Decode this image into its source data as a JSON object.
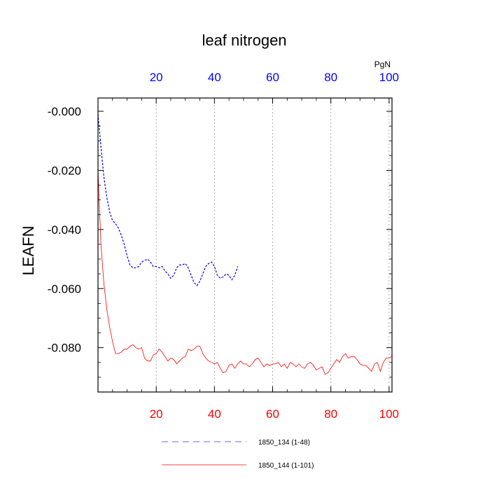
{
  "chart_data": {
    "type": "line",
    "title": "leaf nitrogen",
    "ylabel": "LEAFN",
    "xlabel": "",
    "top_axis_unit": "PgN",
    "xlim": [
      0,
      101
    ],
    "ylim": [
      -0.095,
      0.0045
    ],
    "x_ticks": [
      20,
      40,
      60,
      80,
      100
    ],
    "x_tick_labels": [
      "20",
      "40",
      "60",
      "80",
      "100"
    ],
    "y_ticks": [
      0.0,
      -0.02,
      -0.04,
      -0.06,
      -0.08
    ],
    "y_tick_labels": [
      "-0.000",
      "-0.020",
      "-0.040",
      "-0.060",
      "-0.080"
    ],
    "grid": "vertical dotted at x ticks",
    "colors": {
      "series_blue": "#0000ff",
      "series_red": "#ff0000",
      "top_axis": "#0000ff",
      "bottom_axis": "#ff0000"
    },
    "series": [
      {
        "name": "1850_134 (1-48)",
        "color": "#0000ff",
        "style": "dashed",
        "x": [
          0,
          1,
          2,
          3,
          4,
          5,
          6,
          7,
          8,
          9,
          10,
          11,
          12,
          13,
          14,
          15,
          16,
          17,
          18,
          19,
          20,
          21,
          22,
          23,
          24,
          25,
          26,
          27,
          28,
          29,
          30,
          31,
          32,
          33,
          34,
          35,
          36,
          37,
          38,
          39,
          40,
          41,
          42,
          43,
          44,
          45,
          46,
          47,
          48
        ],
        "y": [
          -0.001,
          -0.012,
          -0.022,
          -0.029,
          -0.034,
          -0.037,
          -0.038,
          -0.0395,
          -0.042,
          -0.045,
          -0.049,
          -0.052,
          -0.053,
          -0.053,
          -0.0525,
          -0.051,
          -0.0505,
          -0.05,
          -0.051,
          -0.0525,
          -0.0525,
          -0.053,
          -0.0525,
          -0.054,
          -0.055,
          -0.0565,
          -0.0555,
          -0.053,
          -0.052,
          -0.052,
          -0.0515,
          -0.053,
          -0.0555,
          -0.058,
          -0.059,
          -0.0575,
          -0.055,
          -0.0525,
          -0.0515,
          -0.051,
          -0.0525,
          -0.0555,
          -0.0565,
          -0.056,
          -0.055,
          -0.0555,
          -0.057,
          -0.0555,
          -0.0525
        ]
      },
      {
        "name": "1850_144 (1-101)",
        "color": "#ff0000",
        "style": "solid",
        "x": [
          0,
          1,
          2,
          3,
          4,
          5,
          6,
          7,
          8,
          9,
          10,
          11,
          12,
          13,
          14,
          15,
          16,
          17,
          18,
          19,
          20,
          21,
          22,
          23,
          24,
          25,
          26,
          27,
          28,
          29,
          30,
          31,
          32,
          33,
          34,
          35,
          36,
          37,
          38,
          39,
          40,
          41,
          42,
          43,
          44,
          45,
          46,
          47,
          48,
          49,
          50,
          51,
          52,
          53,
          54,
          55,
          56,
          57,
          58,
          59,
          60,
          61,
          62,
          63,
          64,
          65,
          66,
          67,
          68,
          69,
          70,
          71,
          72,
          73,
          74,
          75,
          76,
          77,
          78,
          79,
          80,
          81,
          82,
          83,
          84,
          85,
          86,
          87,
          88,
          89,
          90,
          91,
          92,
          93,
          94,
          95,
          96,
          97,
          98,
          99,
          100,
          101
        ],
        "y": [
          -0.02,
          -0.045,
          -0.058,
          -0.067,
          -0.073,
          -0.078,
          -0.082,
          -0.082,
          -0.0815,
          -0.0805,
          -0.0805,
          -0.0795,
          -0.079,
          -0.08,
          -0.0805,
          -0.08,
          -0.0835,
          -0.0845,
          -0.0845,
          -0.0825,
          -0.082,
          -0.0805,
          -0.0815,
          -0.083,
          -0.0845,
          -0.0835,
          -0.084,
          -0.0855,
          -0.0845,
          -0.0835,
          -0.083,
          -0.0805,
          -0.081,
          -0.0805,
          -0.0795,
          -0.0795,
          -0.082,
          -0.0835,
          -0.0845,
          -0.085,
          -0.0855,
          -0.085,
          -0.087,
          -0.0885,
          -0.088,
          -0.086,
          -0.0855,
          -0.087,
          -0.0855,
          -0.0845,
          -0.0855,
          -0.0855,
          -0.0865,
          -0.0855,
          -0.084,
          -0.0835,
          -0.085,
          -0.0865,
          -0.0855,
          -0.086,
          -0.0855,
          -0.0855,
          -0.085,
          -0.0865,
          -0.0855,
          -0.087,
          -0.085,
          -0.0855,
          -0.0865,
          -0.0855,
          -0.0865,
          -0.087,
          -0.0855,
          -0.085,
          -0.086,
          -0.0875,
          -0.087,
          -0.0865,
          -0.089,
          -0.0885,
          -0.087,
          -0.0855,
          -0.084,
          -0.085,
          -0.083,
          -0.082,
          -0.0835,
          -0.083,
          -0.083,
          -0.084,
          -0.0855,
          -0.086,
          -0.086,
          -0.087,
          -0.088,
          -0.0855,
          -0.085,
          -0.088,
          -0.085,
          -0.0835,
          -0.0835,
          -0.083
        ]
      }
    ],
    "legend": {
      "placement": "bottom-center",
      "entries": [
        {
          "label": "1850_134 (1-48)",
          "color": "#6666ff",
          "style": "dashed"
        },
        {
          "label": "1850_144 (1-101)",
          "color": "#ff4444",
          "style": "solid"
        }
      ]
    }
  }
}
